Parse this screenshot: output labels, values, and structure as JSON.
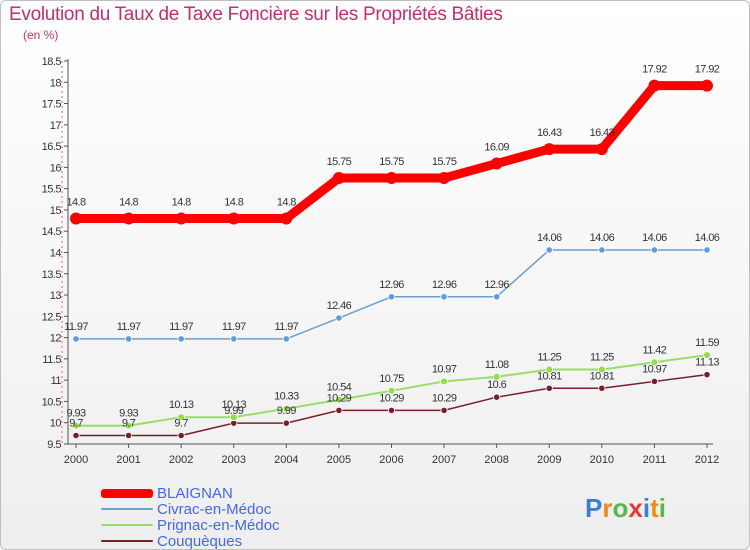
{
  "header": {
    "title": "Evolution du Taux de Taxe Foncière sur les Propriétés Bâties",
    "subtitle": "(en %)"
  },
  "logo": {
    "text": "Proxiti",
    "colors": [
      "#3b7fd1",
      "#f28a1a",
      "#56b947",
      "#e63a3a",
      "#3b7fd1",
      "#f28a1a",
      "#56b947"
    ]
  },
  "chart_data": {
    "type": "line",
    "title": "Evolution du Taux de Taxe Foncière sur les Propriétés Bâties",
    "subtitle": "(en %)",
    "x": [
      "2000",
      "2001",
      "2002",
      "2003",
      "2004",
      "2005",
      "2006",
      "2007",
      "2008",
      "2009",
      "2010",
      "2011",
      "2012"
    ],
    "ylim": [
      9.5,
      18.5
    ],
    "yticks": [
      "9.5",
      "10",
      "10.5",
      "11",
      "11.5",
      "12",
      "12.5",
      "13",
      "13.5",
      "14",
      "14.5",
      "15",
      "15.5",
      "16",
      "16.5",
      "17",
      "17.5",
      "18",
      "18.5"
    ],
    "grid": false,
    "legend_position": "bottom-left",
    "series": [
      {
        "name": "BLAIGNAN",
        "color": "#ff0000",
        "values": [
          14.8,
          14.8,
          14.8,
          14.8,
          14.8,
          15.75,
          15.75,
          15.75,
          16.09,
          16.43,
          16.43,
          17.92,
          17.92
        ],
        "labels": [
          "14.8",
          "14.8",
          "14.8",
          "14.8",
          "14.8",
          "15.75",
          "15.75",
          "15.75",
          "16.09",
          "16.43",
          "16.43",
          "17.92",
          "17.92"
        ]
      },
      {
        "name": "Civrac-en-Médoc",
        "color": "#6b9ed1",
        "values": [
          11.97,
          11.97,
          11.97,
          11.97,
          11.97,
          12.46,
          12.96,
          12.96,
          12.96,
          14.06,
          14.06,
          14.06,
          14.06
        ],
        "labels": [
          "11.97",
          "11.97",
          "11.97",
          "11.97",
          "11.97",
          "12.46",
          "12.96",
          "12.96",
          "12.96",
          "14.06",
          "14.06",
          "14.06",
          "14.06"
        ]
      },
      {
        "name": "Prignac-en-Médoc",
        "color": "#99dd66",
        "values": [
          9.93,
          9.93,
          10.13,
          10.13,
          10.33,
          10.54,
          10.75,
          10.97,
          11.08,
          11.25,
          11.25,
          11.42,
          11.59
        ],
        "labels": [
          "9.93",
          "9.93",
          "10.13",
          "10.13",
          "10.33",
          "10.54",
          "10.75",
          "10.97",
          "11.08",
          "11.25",
          "11.25",
          "11.42",
          "11.59"
        ]
      },
      {
        "name": "Couquèques",
        "color": "#7a1f2a",
        "values": [
          9.7,
          9.7,
          9.7,
          9.99,
          9.99,
          10.29,
          10.29,
          10.29,
          10.6,
          10.81,
          10.81,
          10.97,
          11.13
        ],
        "labels": [
          "9.7",
          "9.7",
          "9.7",
          "9.99",
          "9.99",
          "10.29",
          "10.29",
          "10.29",
          "10.6",
          "10.81",
          "10.81",
          "10.97",
          "11.13"
        ]
      }
    ]
  }
}
